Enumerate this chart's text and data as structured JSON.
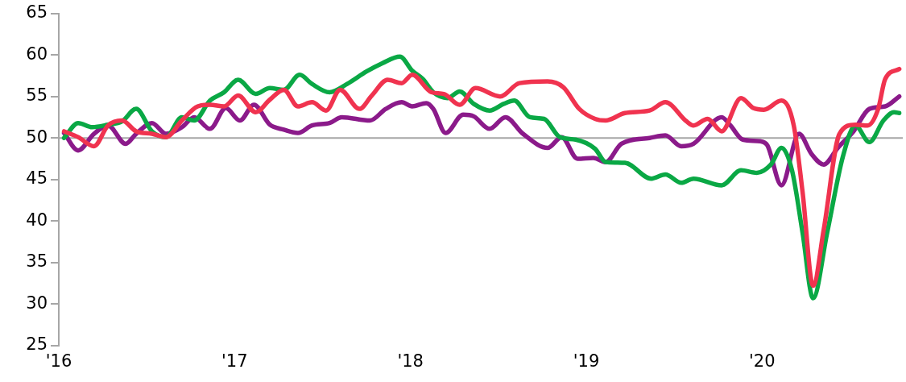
{
  "chart_data": {
    "type": "line",
    "xlim": [
      2016,
      2020.8
    ],
    "xticks": [
      {
        "value": 2016,
        "label": "'16"
      },
      {
        "value": 2017,
        "label": "'17"
      },
      {
        "value": 2018,
        "label": "'18"
      },
      {
        "value": 2019,
        "label": "'19"
      },
      {
        "value": 2020,
        "label": "'20"
      }
    ],
    "ylim": [
      25,
      65
    ],
    "yticks": [
      25,
      30,
      35,
      40,
      45,
      50,
      55,
      60,
      65
    ],
    "grid": false,
    "legend": false,
    "marker": "none",
    "line_style": "solid",
    "ref_lines": [
      {
        "axis": "y",
        "value": 50,
        "color": "#a6a6a6"
      }
    ],
    "series": [
      {
        "color": "#f0334f",
        "x": [
          2016.03,
          2016.11,
          2016.2,
          2016.28,
          2016.36,
          2016.44,
          2016.53,
          2016.61,
          2016.7,
          2016.79,
          2016.86,
          2016.94,
          2017.02,
          2017.12,
          2017.2,
          2017.28,
          2017.36,
          2017.44,
          2017.52,
          2017.6,
          2017.71,
          2017.78,
          2017.87,
          2017.95,
          2018.01,
          2018.12,
          2018.19,
          2018.28,
          2018.37,
          2018.51,
          2018.62,
          2018.78,
          2018.87,
          2018.96,
          2019.05,
          2019.11,
          2019.22,
          2019.36,
          2019.45,
          2019.57,
          2019.61,
          2019.69,
          2019.77,
          2019.88,
          2019.95,
          2020.01,
          2020.11,
          2020.18,
          2020.23,
          2020.29,
          2020.35,
          2020.44,
          2020.53,
          2020.6,
          2020.66,
          2020.7,
          2020.78
        ],
        "values": [
          50.8,
          50.1,
          49,
          51.5,
          52.1,
          50.8,
          50.5,
          50.1,
          52.1,
          53.8,
          54,
          53.8,
          55.1,
          53.1,
          54.6,
          55.8,
          53.8,
          54.3,
          53.3,
          55.8,
          53.5,
          55.1,
          57,
          56.6,
          57.6,
          55.5,
          55.3,
          54,
          56,
          55,
          56.6,
          56.8,
          56.1,
          53.5,
          52.3,
          52.1,
          53,
          53.3,
          54.3,
          52,
          51.5,
          52.3,
          50.8,
          54.8,
          53.6,
          53.4,
          54.5,
          51.5,
          43.5,
          32.2,
          38.9,
          50.5,
          51.6,
          51.5,
          53.5,
          57.1,
          58.3
        ]
      },
      {
        "color": "#0aa845",
        "x": [
          2016.03,
          2016.11,
          2016.19,
          2016.28,
          2016.36,
          2016.44,
          2016.53,
          2016.61,
          2016.7,
          2016.77,
          2016.86,
          2016.94,
          2017.02,
          2017.12,
          2017.2,
          2017.28,
          2017.37,
          2017.44,
          2017.54,
          2017.64,
          2017.75,
          2017.84,
          2017.94,
          2018.01,
          2018.07,
          2018.13,
          2018.21,
          2018.28,
          2018.36,
          2018.45,
          2018.53,
          2018.59,
          2018.68,
          2018.76,
          2018.85,
          2018.94,
          2019.05,
          2019.11,
          2019.22,
          2019.37,
          2019.45,
          2019.54,
          2019.61,
          2019.77,
          2019.88,
          2019.97,
          2020.05,
          2020.11,
          2020.17,
          2020.23,
          2020.29,
          2020.37,
          2020.46,
          2020.53,
          2020.61,
          2020.69,
          2020.75,
          2020.78
        ],
        "values": [
          50,
          51.8,
          51.3,
          51.6,
          52,
          53.5,
          50.8,
          50.1,
          52.5,
          52.1,
          54.5,
          55.5,
          57,
          55.3,
          56,
          55.8,
          57.6,
          56.5,
          55.5,
          56.5,
          58,
          59,
          59.8,
          58.1,
          57.1,
          55.5,
          54.8,
          55.6,
          54.1,
          53.3,
          54.1,
          54.5,
          52.5,
          52.3,
          50.1,
          49.8,
          48.7,
          47.1,
          47,
          45.1,
          45.6,
          44.6,
          45.1,
          44.3,
          46.1,
          45.8,
          46.8,
          48.8,
          46.1,
          38.6,
          30.7,
          38.6,
          47.8,
          51.5,
          49.5,
          52.1,
          53.1,
          53
        ]
      },
      {
        "color": "#8b1a8a",
        "x": [
          2016.03,
          2016.11,
          2016.2,
          2016.28,
          2016.38,
          2016.44,
          2016.53,
          2016.61,
          2016.7,
          2016.77,
          2016.86,
          2016.95,
          2017.03,
          2017.11,
          2017.2,
          2017.28,
          2017.36,
          2017.44,
          2017.54,
          2017.61,
          2017.77,
          2017.86,
          2017.95,
          2018.01,
          2018.09,
          2018.13,
          2018.2,
          2018.3,
          2018.36,
          2018.45,
          2018.54,
          2018.64,
          2018.78,
          2018.86,
          2018.95,
          2019.04,
          2019.11,
          2019.2,
          2019.36,
          2019.45,
          2019.54,
          2019.61,
          2019.77,
          2019.82,
          2019.89,
          2019.99,
          2020.03,
          2020.11,
          2020.21,
          2020.28,
          2020.35,
          2020.43,
          2020.52,
          2020.61,
          2020.7,
          2020.78
        ],
        "values": [
          50.6,
          48.5,
          50.5,
          51.5,
          49.3,
          50.5,
          51.8,
          50.5,
          51.3,
          52.5,
          51.1,
          53.6,
          52.1,
          54,
          51.6,
          51,
          50.6,
          51.5,
          51.8,
          52.5,
          52.1,
          53.5,
          54.3,
          53.8,
          54.2,
          53.5,
          50.6,
          52.8,
          52.6,
          51.1,
          52.5,
          50.5,
          48.8,
          50.1,
          47.5,
          47.6,
          47.1,
          49.3,
          50,
          50.3,
          49,
          49.3,
          52.5,
          51.5,
          49.8,
          49.6,
          49.1,
          44.3,
          50.5,
          48.1,
          46.8,
          48.8,
          50.8,
          53.5,
          53.8,
          55
        ]
      }
    ]
  }
}
